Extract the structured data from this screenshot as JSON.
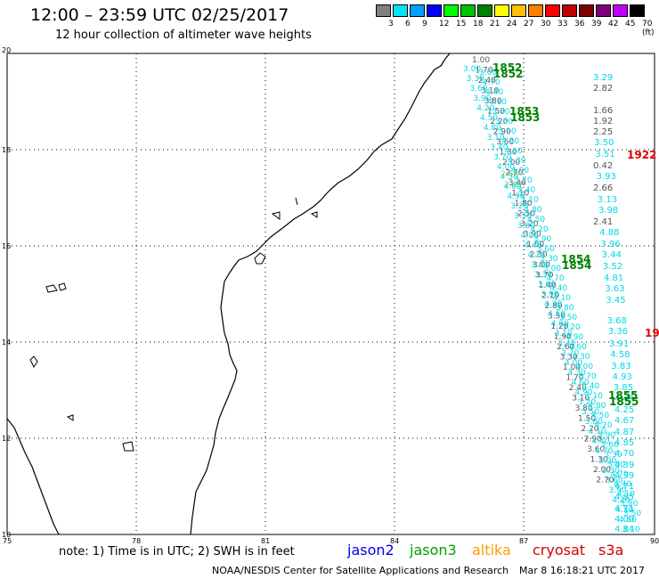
{
  "header": {
    "title": "12:00 – 23:59 UTC 02/25/2017",
    "subtitle": "12 hour collection of altimeter wave heights"
  },
  "color_scale": {
    "labels": [
      "3",
      "6",
      "9",
      "12",
      "15",
      "18",
      "21",
      "24",
      "27",
      "30",
      "33",
      "36",
      "39",
      "42",
      "45",
      "70 (ft)"
    ],
    "colors": [
      "#808080",
      "#00e5ff",
      "#00a0ff",
      "#0000ff",
      "#00ff00",
      "#00c000",
      "#008000",
      "#ffff00",
      "#ffc000",
      "#ff8000",
      "#ff0000",
      "#c00000",
      "#800000",
      "#800080",
      "#c000ff",
      "#000000"
    ]
  },
  "map": {
    "lat_labels": [
      "20",
      "18",
      "16",
      "14",
      "12",
      "10"
    ],
    "lon_labels": [
      "75",
      "78",
      "81",
      "84",
      "87",
      "90"
    ],
    "cyan_values_right": [
      "3.29",
      "3.50",
      "3.51",
      "3.93",
      "3.13",
      "3.98",
      "4.88",
      "3.96",
      "3.44",
      "3.52",
      "4.81",
      "3.63",
      "3.45",
      "3.68",
      "3.36",
      "3.91",
      "4.58",
      "3.83",
      "4.93",
      "3.85",
      "4.49",
      "4.25",
      "4.67",
      "4.87",
      "4.85",
      "4.70",
      "4.39",
      "4.59",
      "4.71",
      "4.85",
      "4.71",
      "4.00",
      "4.84"
    ],
    "gray_values_right": [
      "2.82",
      "1.66",
      "1.92",
      "2.25",
      "0.42",
      "2.66",
      "2.41"
    ],
    "track_time_labels": [
      {
        "text": "1852",
        "color": "#008000"
      },
      {
        "text": "1853",
        "color": "#008000"
      },
      {
        "text": "1854",
        "color": "#008000"
      },
      {
        "text": "1855",
        "color": "#008000"
      },
      {
        "text": "1922",
        "color": "#e00000"
      },
      {
        "text": "19",
        "color": "#e00000"
      }
    ]
  },
  "footer": {
    "note": "note: 1) Time is in UTC; 2) SWH is in feet",
    "satellites": [
      {
        "name": "jason2",
        "color": "#0000e0"
      },
      {
        "name": "jason3",
        "color": "#00a000"
      },
      {
        "name": "altika",
        "color": "#ff9900"
      },
      {
        "name": "cryosat",
        "color": "#d00000"
      },
      {
        "name": "s3a",
        "color": "#d00000"
      }
    ],
    "credit": "NOAA/NESDIS Center for Satellite Applications and Research",
    "timestamp": "Mar  8 16:18:21 UTC 2017"
  }
}
